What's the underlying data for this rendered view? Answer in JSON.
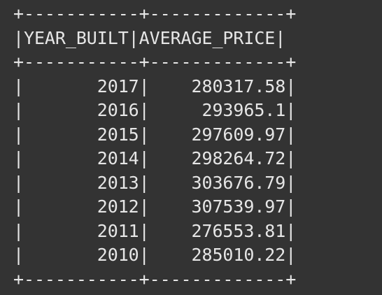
{
  "table": {
    "border_line": "+-----------+-------------+",
    "header_line": "|YEAR_BUILT|AVERAGE_PRICE|",
    "columns": [
      "YEAR_BUILT",
      "AVERAGE_PRICE"
    ],
    "rows": [
      {
        "line": "|       2017|    280317.58|",
        "year_built": "2017",
        "average_price": "280317.58"
      },
      {
        "line": "|       2016|     293965.1|",
        "year_built": "2016",
        "average_price": "293965.1"
      },
      {
        "line": "|       2015|    297609.97|",
        "year_built": "2015",
        "average_price": "297609.97"
      },
      {
        "line": "|       2014|    298264.72|",
        "year_built": "2014",
        "average_price": "298264.72"
      },
      {
        "line": "|       2013|    303676.79|",
        "year_built": "2013",
        "average_price": "303676.79"
      },
      {
        "line": "|       2012|    307539.97|",
        "year_built": "2012",
        "average_price": "307539.97"
      },
      {
        "line": "|       2011|    276553.81|",
        "year_built": "2011",
        "average_price": "276553.81"
      },
      {
        "line": "|       2010|    285010.22|",
        "year_built": "2010",
        "average_price": "285010.22"
      }
    ]
  },
  "colors": {
    "background": "#333333",
    "text": "#e6e6e6"
  }
}
